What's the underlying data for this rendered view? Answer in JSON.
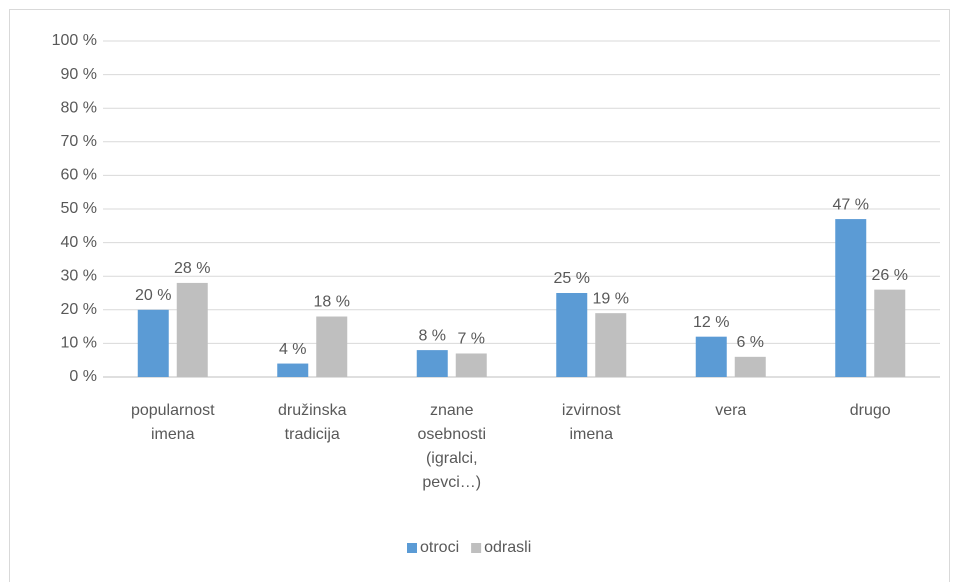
{
  "chart_data": {
    "type": "bar",
    "categories": [
      "popularnost imena",
      "družinska tradicija",
      "znane osebnosti (igralci, pevci…)",
      "izvirnost imena",
      "vera",
      "drugo"
    ],
    "series": [
      {
        "name": "otroci",
        "color": "#5b9bd5",
        "values": [
          20,
          4,
          8,
          25,
          12,
          47
        ],
        "value_labels": [
          "20 %",
          "4 %",
          "8 %",
          "25 %",
          "12 %",
          "47 %"
        ]
      },
      {
        "name": "odrasli",
        "color": "#bfbfbf",
        "values": [
          28,
          18,
          7,
          19,
          6,
          26
        ],
        "value_labels": [
          "28 %",
          "18 %",
          "7 %",
          "19 %",
          "6 %",
          "26 %"
        ]
      }
    ],
    "ylim": [
      0,
      100
    ],
    "yticks": [
      {
        "value": 0,
        "label": "0 %"
      },
      {
        "value": 10,
        "label": "10 %"
      },
      {
        "value": 20,
        "label": "20 %"
      },
      {
        "value": 30,
        "label": "30 %"
      },
      {
        "value": 40,
        "label": "40 %"
      },
      {
        "value": 50,
        "label": "50 %"
      },
      {
        "value": 60,
        "label": "60 %"
      },
      {
        "value": 70,
        "label": "70 %"
      },
      {
        "value": 80,
        "label": "80 %"
      },
      {
        "value": 90,
        "label": "90 %"
      },
      {
        "value": 100,
        "label": "100 %"
      }
    ],
    "grid": true,
    "legend": "bottom"
  }
}
